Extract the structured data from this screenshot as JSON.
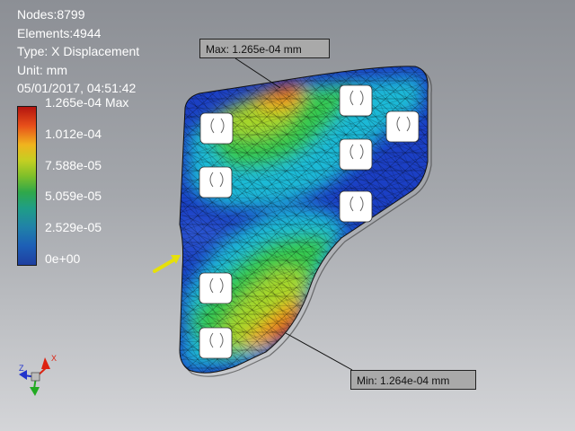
{
  "info": {
    "nodes": "Nodes:8799",
    "elements": "Elements:4944",
    "type": "Type: X Displacement",
    "unit": "Unit: mm",
    "datetime": "05/01/2017, 04:51:42"
  },
  "legend": {
    "ticks": [
      "1.265e-04 Max",
      "1.012e-04",
      "7.588e-05",
      "5.059e-05",
      "2.529e-05",
      "0e+00"
    ]
  },
  "callouts": {
    "max": "Max: 1.265e-04 mm",
    "min": "Min: 1.264e-04 mm"
  },
  "triad": {
    "x": "X",
    "z": "Z"
  },
  "colors": {
    "background_top": "#8c8f95",
    "high": "#c41a10",
    "low": "#1e3fc0",
    "load_arrow": "#e6e00a"
  }
}
